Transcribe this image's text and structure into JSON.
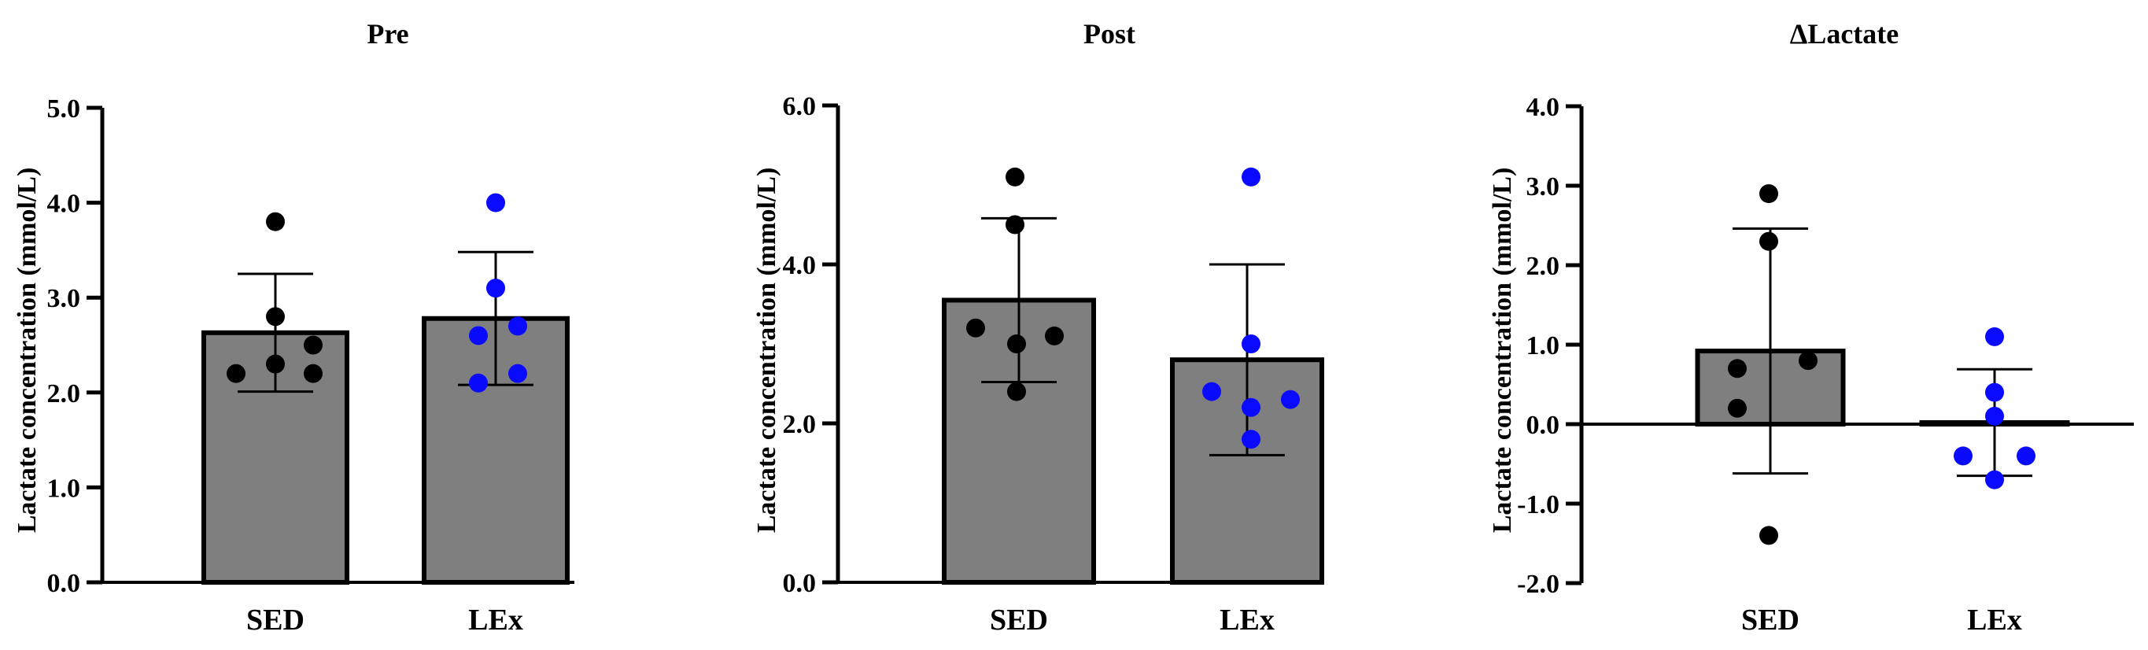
{
  "chart_data": [
    {
      "type": "bar",
      "title": "Pre",
      "ylabel": "Lactate concentration (mmol/L)",
      "xlabel": "",
      "categories": [
        "SED",
        "LEx"
      ],
      "values": [
        2.63,
        2.78
      ],
      "error": [
        0.62,
        0.7
      ],
      "points": [
        [
          3.8,
          2.8,
          2.5,
          2.3,
          2.2,
          2.2
        ],
        [
          4.0,
          3.1,
          2.7,
          2.6,
          2.2,
          2.1
        ]
      ],
      "point_colors": [
        "#000000",
        "#0a0aff"
      ],
      "bar_color": "#7f7f7f",
      "ylim": [
        0,
        5
      ],
      "yticks": [
        0,
        1,
        2,
        3,
        4,
        5
      ],
      "ytick_labels": [
        "0.0",
        "1.0",
        "2.0",
        "3.0",
        "4.0",
        "5.0"
      ]
    },
    {
      "type": "bar",
      "title": "Post",
      "ylabel": "Lactate concentration (mmol/L)",
      "xlabel": "",
      "categories": [
        "SED",
        "LEx"
      ],
      "values": [
        3.55,
        2.8
      ],
      "error": [
        1.03,
        1.2
      ],
      "points": [
        [
          5.1,
          4.5,
          3.2,
          3.1,
          3.0,
          2.4
        ],
        [
          5.1,
          3.0,
          2.4,
          2.3,
          2.2,
          1.8
        ]
      ],
      "point_colors": [
        "#000000",
        "#0a0aff"
      ],
      "bar_color": "#7f7f7f",
      "ylim": [
        0,
        6
      ],
      "yticks": [
        0,
        2,
        4,
        6
      ],
      "ytick_labels": [
        "0.0",
        "2.0",
        "4.0",
        "6.0"
      ]
    },
    {
      "type": "bar",
      "title": "ΔLactate",
      "ylabel": "Lactate concentration (mmol/L)",
      "xlabel": "",
      "categories": [
        "SED",
        "LEx"
      ],
      "values": [
        0.92,
        0.02
      ],
      "error": [
        1.54,
        0.67
      ],
      "points": [
        [
          2.9,
          2.3,
          0.8,
          0.7,
          0.2,
          -1.4
        ],
        [
          1.1,
          0.4,
          0.1,
          -0.4,
          -0.4,
          -0.7
        ]
      ],
      "point_colors": [
        "#000000",
        "#0a0aff"
      ],
      "bar_color": "#7f7f7f",
      "ylim": [
        -2,
        4
      ],
      "yticks": [
        -2,
        -1,
        0,
        1,
        2,
        3,
        4
      ],
      "ytick_labels": [
        "-2.0",
        "-1.0",
        "0.0",
        "1.0",
        "2.0",
        "3.0",
        "4.0"
      ]
    }
  ]
}
